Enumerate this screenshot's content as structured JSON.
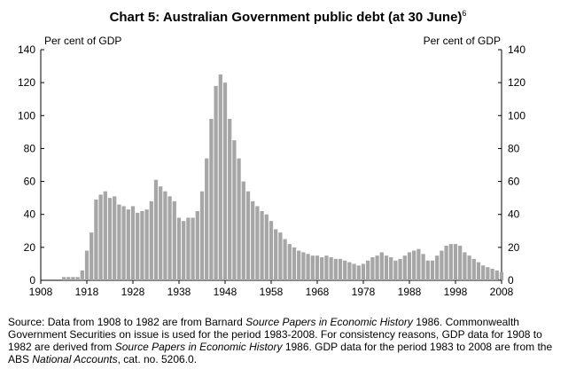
{
  "chart_data": {
    "type": "bar",
    "title": "Chart 5: Australian Government public debt (at 30 June)",
    "title_superscript": "6",
    "left_unit_label": "Per cent of GDP",
    "right_unit_label": "Per cent of GDP",
    "xlabel": "",
    "ylabel": "",
    "ylim": [
      0,
      140
    ],
    "yticks": [
      0,
      20,
      40,
      60,
      80,
      100,
      120,
      140
    ],
    "xtick_labels": [
      "1908",
      "1918",
      "1928",
      "1938",
      "1948",
      "1958",
      "1968",
      "1978",
      "1988",
      "1998",
      "2008"
    ],
    "grid": false,
    "bar_color": "#a6a6a6",
    "categories": [
      1908,
      1909,
      1910,
      1911,
      1912,
      1913,
      1914,
      1915,
      1916,
      1917,
      1918,
      1919,
      1920,
      1921,
      1922,
      1923,
      1924,
      1925,
      1926,
      1927,
      1928,
      1929,
      1930,
      1931,
      1932,
      1933,
      1934,
      1935,
      1936,
      1937,
      1938,
      1939,
      1940,
      1941,
      1942,
      1943,
      1944,
      1945,
      1946,
      1947,
      1948,
      1949,
      1950,
      1951,
      1952,
      1953,
      1954,
      1955,
      1956,
      1957,
      1958,
      1959,
      1960,
      1961,
      1962,
      1963,
      1964,
      1965,
      1966,
      1967,
      1968,
      1969,
      1970,
      1971,
      1972,
      1973,
      1974,
      1975,
      1976,
      1977,
      1978,
      1979,
      1980,
      1981,
      1982,
      1983,
      1984,
      1985,
      1986,
      1987,
      1988,
      1989,
      1990,
      1991,
      1992,
      1993,
      1994,
      1995,
      1996,
      1997,
      1998,
      1999,
      2000,
      2001,
      2002,
      2003,
      2004,
      2005,
      2006,
      2007,
      2008
    ],
    "values": [
      0,
      0,
      0,
      0,
      0,
      2,
      2,
      2,
      2,
      6,
      18,
      29,
      49,
      52,
      54,
      50,
      51,
      46,
      45,
      43,
      45,
      41,
      42,
      43,
      48,
      61,
      57,
      54,
      51,
      48,
      38,
      36,
      38,
      38,
      42,
      54,
      74,
      98,
      118,
      125,
      120,
      98,
      85,
      74,
      60,
      54,
      48,
      45,
      42,
      40,
      36,
      31,
      29,
      25,
      22,
      20,
      18,
      17,
      16,
      15,
      15,
      14,
      15,
      14,
      13,
      13,
      12,
      11,
      10,
      9,
      10,
      12,
      14,
      15,
      17,
      15,
      14,
      12,
      13,
      15,
      17,
      18,
      19,
      16,
      12,
      12,
      15,
      18,
      21,
      22,
      22,
      21,
      17,
      15,
      13,
      11,
      9,
      8,
      7,
      6,
      5
    ]
  },
  "source_note": {
    "p1": "Source: Data from 1908 to 1982 are from Barnard ",
    "p2": "Source Papers in Economic History",
    "p3": " 1986. Commonwealth Government Securities on issue is used for the period 1983-2008. For consistency reasons, GDP data for 1908 to 1982 are derived from ",
    "p4": "Source Papers in Economic History",
    "p5": " 1986. GDP data for the period 1983 to 2008 are from the ABS ",
    "p6": "National Accounts",
    "p7": ", cat. no. 5206.0."
  }
}
